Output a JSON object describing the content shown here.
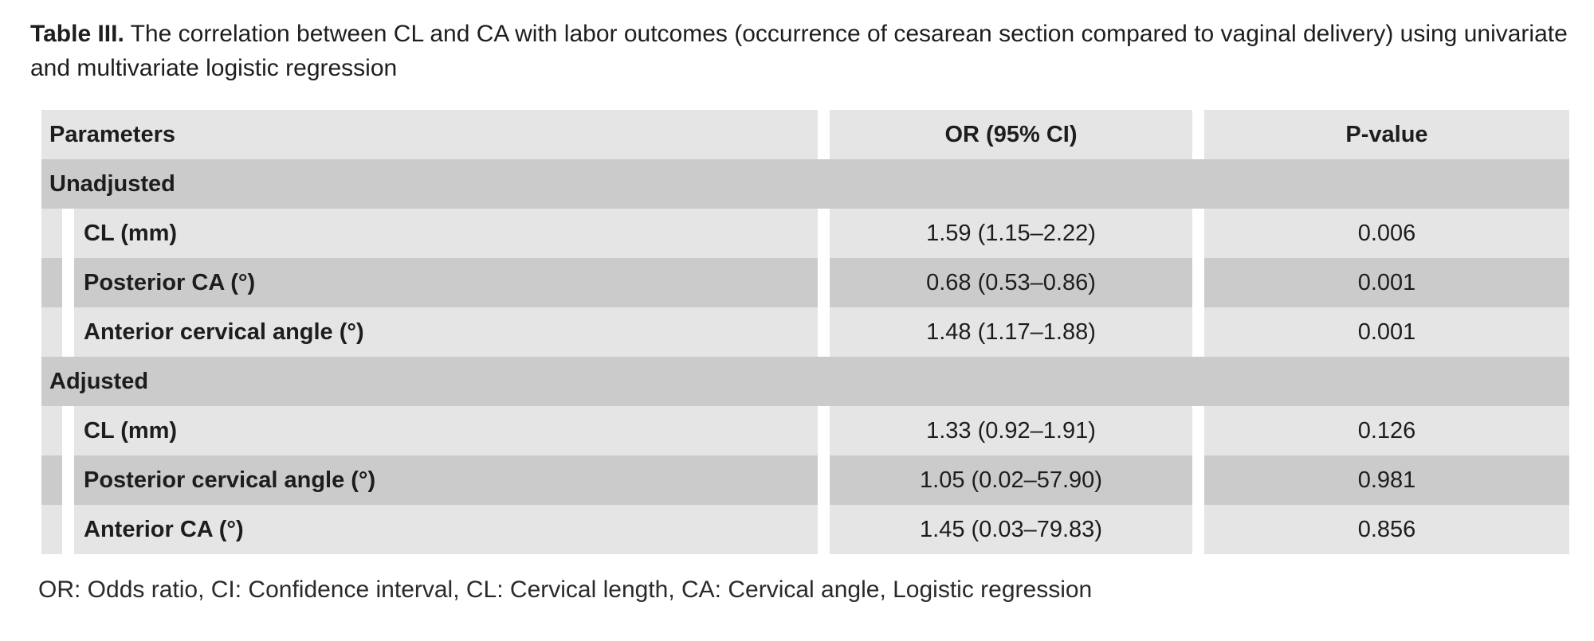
{
  "title": {
    "label": "Table III.",
    "text": " The correlation between CL and CA with labor outcomes (occurrence of cesarean section compared to vaginal delivery) using univariate and multivariate logistic regression"
  },
  "table": {
    "columns": {
      "parameters": "Parameters",
      "or_ci": "OR (95% CI)",
      "p_value": "P-value"
    },
    "sections": [
      {
        "header": "Unadjusted",
        "rows": [
          {
            "parameter": "CL (mm)",
            "or_ci": "1.59 (1.15–2.22)",
            "p_value": "0.006"
          },
          {
            "parameter": "Posterior CA (°)",
            "or_ci": "0.68 (0.53–0.86)",
            "p_value": "0.001"
          },
          {
            "parameter": "Anterior cervical angle (°)",
            "or_ci": "1.48 (1.17–1.88)",
            "p_value": "0.001"
          }
        ]
      },
      {
        "header": "Adjusted",
        "rows": [
          {
            "parameter": "CL (mm)",
            "or_ci": "1.33 (0.92–1.91)",
            "p_value": "0.126"
          },
          {
            "parameter": "Posterior cervical angle (°)",
            "or_ci": "1.05 (0.02–57.90)",
            "p_value": "0.981"
          },
          {
            "parameter": "Anterior CA (°)",
            "or_ci": "1.45 (0.03–79.83)",
            "p_value": "0.856"
          }
        ]
      }
    ]
  },
  "footnote": "OR: Odds ratio, CI: Confidence interval, CL: Cervical length, CA: Cervical angle, Logistic regression",
  "colors": {
    "background": "#ffffff",
    "row_light": "#e5e5e5",
    "row_dark": "#cbcbcb",
    "text": "#1d1d1d"
  }
}
